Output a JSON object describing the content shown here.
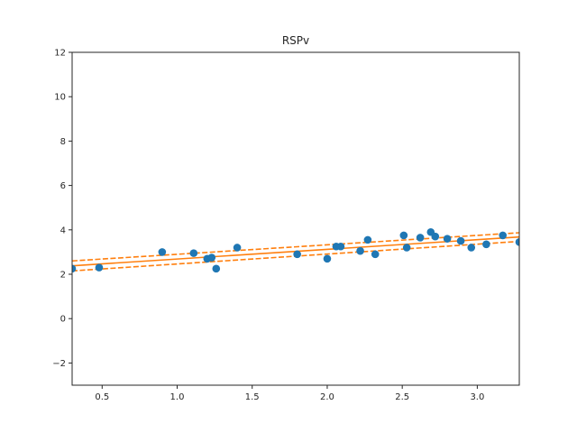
{
  "chart_data": {
    "type": "scatter",
    "title": "RSPv",
    "xlabel": "",
    "ylabel": "",
    "xlim": [
      0.3,
      3.28
    ],
    "ylim": [
      -3,
      12
    ],
    "xticks": [
      0.5,
      1.0,
      1.5,
      2.0,
      2.5,
      3.0
    ],
    "xtick_labels": [
      "0.5",
      "1.0",
      "1.5",
      "2.0",
      "2.5",
      "3.0"
    ],
    "yticks": [
      -2,
      0,
      2,
      4,
      6,
      8,
      10,
      12
    ],
    "ytick_labels": [
      "−2",
      "0",
      "2",
      "4",
      "6",
      "8",
      "10",
      "12"
    ],
    "grid": false,
    "colors": {
      "points": "#1f77b4",
      "fit": "#ff7f0e",
      "axes": "#262626"
    },
    "series": [
      {
        "kind": "points",
        "x": [
          0.3,
          0.48,
          0.9,
          1.11,
          1.2,
          1.23,
          1.26,
          1.4,
          1.8,
          2.0,
          2.06,
          2.09,
          2.22,
          2.27,
          2.32,
          2.51,
          2.53,
          2.62,
          2.69,
          2.72,
          2.8,
          2.89,
          2.96,
          3.06,
          3.17,
          3.28
        ],
        "y": [
          2.25,
          2.3,
          3.0,
          2.95,
          2.7,
          2.75,
          2.25,
          3.2,
          2.9,
          2.7,
          3.25,
          3.25,
          3.05,
          3.55,
          2.9,
          3.75,
          3.2,
          3.65,
          3.9,
          3.7,
          3.6,
          3.5,
          3.2,
          3.35,
          3.75,
          3.45
        ]
      },
      {
        "kind": "fit",
        "style": "solid",
        "x": [
          0.3,
          3.28
        ],
        "y": [
          2.38,
          3.68
        ]
      },
      {
        "kind": "ci_upper",
        "style": "dashed",
        "x": [
          0.3,
          3.28
        ],
        "y": [
          2.6,
          3.87
        ]
      },
      {
        "kind": "ci_lower",
        "style": "dashed",
        "x": [
          0.3,
          3.28
        ],
        "y": [
          2.15,
          3.48
        ]
      }
    ]
  }
}
